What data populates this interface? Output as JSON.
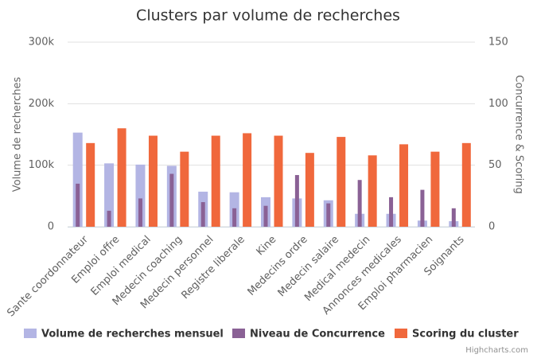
{
  "chart_data": {
    "type": "bar",
    "title": "Clusters par volume de recherches",
    "y_label": "Volume de recherches",
    "y2_label": "Concurrence & Scoring",
    "categories": [
      "Sante coordonnateur",
      "Emploi offre",
      "Emploi medical",
      "Medecin coaching",
      "Medecin personnel",
      "Registre liberale",
      "Kine",
      "Medecins ordre",
      "Medecin salaire",
      "Medical medecin",
      "Annonces medicales",
      "Emploi pharmacien",
      "Soignants"
    ],
    "series": [
      {
        "name": "Volume de recherches mensuel",
        "color": "#b3b5e4",
        "values": [
          153000,
          103000,
          101000,
          99000,
          57000,
          56000,
          48000,
          46000,
          43000,
          21000,
          21000,
          10000,
          9000
        ]
      },
      {
        "name": "Niveau de Concurrence",
        "color": "#8a6195",
        "axis": "y2",
        "values": [
          35,
          13,
          23,
          43,
          20,
          15,
          17,
          42,
          19,
          38,
          24,
          30,
          15
        ]
      },
      {
        "name": "Scoring du cluster",
        "color": "#f0683c",
        "axis": "y2",
        "values": [
          68,
          80,
          74,
          61,
          74,
          76,
          74,
          60,
          73,
          58,
          67,
          61,
          68
        ]
      }
    ],
    "ylim": [
      0,
      300000
    ],
    "yticks": [
      0,
      {
        "value": 100000,
        "label": "100k"
      },
      {
        "value": 200000,
        "label": "200k"
      },
      {
        "value": 300000,
        "label": "300k"
      }
    ],
    "y2lim": [
      0,
      150
    ],
    "y2ticks": [
      0,
      50,
      100,
      150
    ],
    "grid": true,
    "legend": "bottom",
    "credits": "Highcharts.com"
  }
}
